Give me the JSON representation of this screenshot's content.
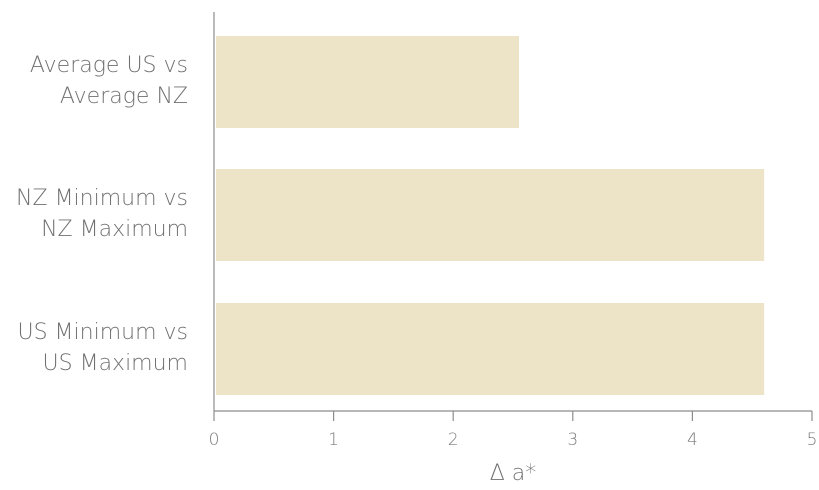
{
  "chart_data": {
    "type": "bar",
    "orientation": "horizontal",
    "categories": [
      [
        "Average US vs",
        "Average NZ"
      ],
      [
        "NZ Minimum vs",
        "NZ Maximum"
      ],
      [
        "US Minimum vs",
        "US Maximum"
      ]
    ],
    "values": [
      2.55,
      4.6,
      4.6
    ],
    "xlabel": "Δ a*",
    "ylabel": "",
    "title": "",
    "xlim": [
      0,
      5
    ],
    "xticks": [
      "0",
      "1",
      "2",
      "3",
      "4",
      "5"
    ],
    "grid": false,
    "bar_color": "#ede4c8"
  }
}
